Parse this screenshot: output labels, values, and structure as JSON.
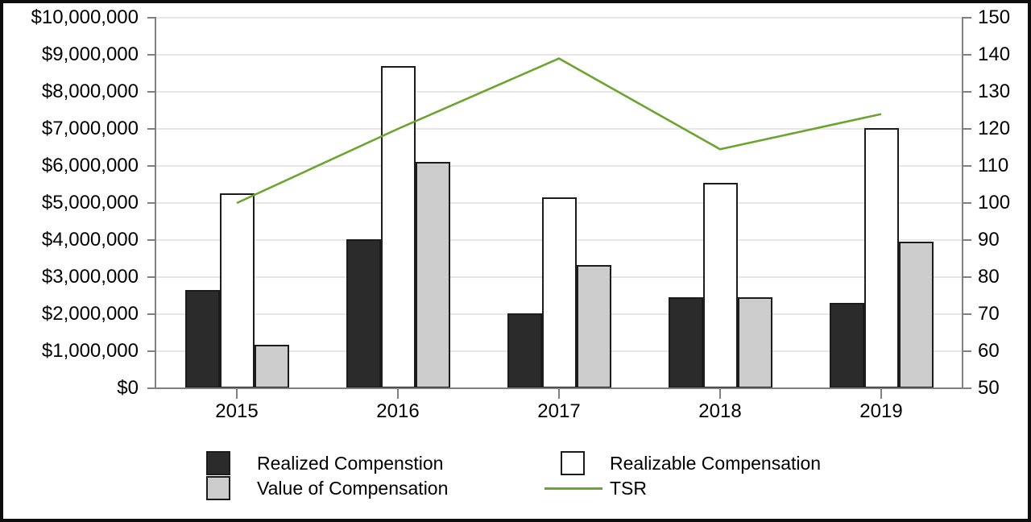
{
  "chart_data": {
    "type": "bar",
    "subtype": "grouped-bars-with-line",
    "categories": [
      "2015",
      "2016",
      "2017",
      "2018",
      "2019"
    ],
    "series": [
      {
        "name": "Realized Compenstion",
        "axis": "left",
        "style": "bar",
        "color": "#2b2b2b",
        "values": [
          2650000,
          4025000,
          2025000,
          2450000,
          2300000
        ]
      },
      {
        "name": "Realizable Compensation",
        "axis": "left",
        "style": "bar",
        "color": "#ffffff",
        "values": [
          5250000,
          8700000,
          5150000,
          5550000,
          7025000
        ]
      },
      {
        "name": "Value of Compensation",
        "axis": "left",
        "style": "bar",
        "color": "#cdcdcd",
        "values": [
          1175000,
          6100000,
          3325000,
          2450000,
          3950000
        ]
      },
      {
        "name": "TSR",
        "axis": "right",
        "style": "line",
        "color": "#6BA42E",
        "values": [
          100,
          120,
          139,
          114.5,
          124
        ]
      }
    ],
    "left_axis": {
      "min": 0,
      "max": 10000000,
      "step": 1000000,
      "tick_labels": [
        "$10,000,000",
        "$9,000,000",
        "$8,000,000",
        "$7,000,000",
        "$6,000,000",
        "$5,000,000",
        "$4,000,000",
        "$3,000,000",
        "$2,000,000",
        "$1,000,000",
        "$0"
      ]
    },
    "right_axis": {
      "min": 50,
      "max": 150,
      "step": 10,
      "tick_labels": [
        "150",
        "140",
        "130",
        "120",
        "110",
        "100",
        "90",
        "80",
        "70",
        "60",
        "50"
      ]
    },
    "title": "",
    "xlabel": "",
    "ylabel": "",
    "grid": true,
    "legend_position": "bottom"
  },
  "legend": {
    "items": [
      {
        "label": "Realized Compenstion",
        "swatch": "dark-square"
      },
      {
        "label": "Realizable Compensation",
        "swatch": "white-square"
      },
      {
        "label": "Value of Compensation",
        "swatch": "gray-square"
      },
      {
        "label": "TSR",
        "swatch": "green-line"
      }
    ]
  },
  "colors": {
    "realized_bar": "#2b2b2b",
    "realizable_bar": "#ffffff",
    "value_bar": "#cdcdcd",
    "tsr_line": "#6BA42E",
    "bar_border": "#1c1c1c",
    "axis": "#808080",
    "gridline": "#e7e7e7",
    "frame_border": "#0e0e0e"
  }
}
